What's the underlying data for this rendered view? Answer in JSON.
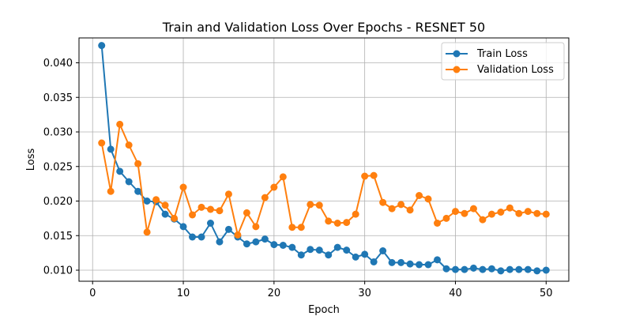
{
  "chart_data": {
    "type": "line",
    "title": "Train and Validation Loss Over Epochs - RESNET 50",
    "xlabel": "Epoch",
    "ylabel": "Loss",
    "xlim": [
      -1.5,
      52.5
    ],
    "ylim": [
      0.0084,
      0.0436
    ],
    "xticks": [
      0,
      10,
      20,
      30,
      40,
      50
    ],
    "yticks": [
      0.01,
      0.015,
      0.02,
      0.025,
      0.03,
      0.035,
      0.04
    ],
    "grid": true,
    "legend_position": "top-right",
    "x": [
      1,
      2,
      3,
      4,
      5,
      6,
      7,
      8,
      9,
      10,
      11,
      12,
      13,
      14,
      15,
      16,
      17,
      18,
      19,
      20,
      21,
      22,
      23,
      24,
      25,
      26,
      27,
      28,
      29,
      30,
      31,
      32,
      33,
      34,
      35,
      36,
      37,
      38,
      39,
      40,
      41,
      42,
      43,
      44,
      45,
      46,
      47,
      48,
      49,
      50
    ],
    "series": [
      {
        "name": "Train Loss",
        "color": "#1f77b4",
        "values": [
          0.0425,
          0.0275,
          0.0243,
          0.0228,
          0.0214,
          0.02,
          0.0199,
          0.0181,
          0.0174,
          0.0163,
          0.0148,
          0.0148,
          0.0168,
          0.0141,
          0.0159,
          0.0148,
          0.0138,
          0.0141,
          0.0145,
          0.0137,
          0.0136,
          0.0133,
          0.0122,
          0.013,
          0.0129,
          0.0122,
          0.0133,
          0.0129,
          0.0119,
          0.0123,
          0.0112,
          0.0128,
          0.0111,
          0.0111,
          0.0109,
          0.0108,
          0.0108,
          0.0115,
          0.0102,
          0.0101,
          0.0101,
          0.0103,
          0.0101,
          0.0102,
          0.0099,
          0.0101,
          0.0101,
          0.0101,
          0.0099,
          0.01
        ]
      },
      {
        "name": "Validation Loss",
        "color": "#ff7f0e",
        "values": [
          0.0284,
          0.0214,
          0.0311,
          0.0281,
          0.0254,
          0.0155,
          0.0202,
          0.0194,
          0.0175,
          0.022,
          0.018,
          0.0191,
          0.0188,
          0.0186,
          0.021,
          0.0151,
          0.0183,
          0.0163,
          0.0205,
          0.022,
          0.0235,
          0.0162,
          0.0162,
          0.0195,
          0.0194,
          0.0171,
          0.0168,
          0.0169,
          0.0181,
          0.0236,
          0.0237,
          0.0198,
          0.0189,
          0.0195,
          0.0187,
          0.0208,
          0.0203,
          0.0168,
          0.0175,
          0.0185,
          0.0182,
          0.0189,
          0.0173,
          0.0181,
          0.0184,
          0.019,
          0.0182,
          0.0185,
          0.0182,
          0.0181
        ]
      }
    ]
  }
}
